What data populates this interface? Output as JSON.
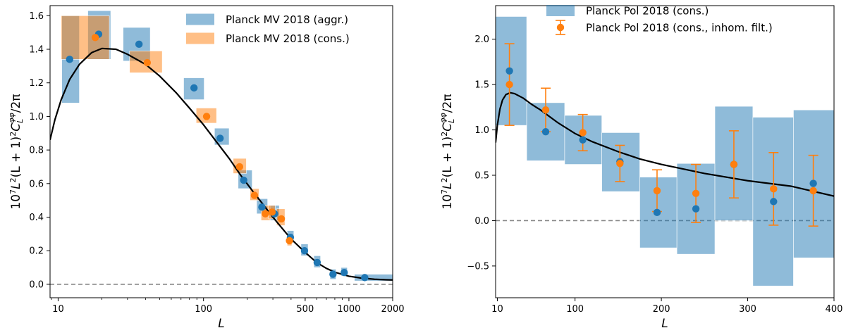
{
  "chart_data": [
    {
      "type": "scatter",
      "xscale": "log",
      "xlabel": "L",
      "ylabel": "10⁷L²(L+1)²C_L^{φφ}/2π",
      "ylabel_parts": {
        "prefix": "10",
        "exp7": "7",
        "L1": "L",
        "exp2a": "2",
        "mid": "(L + 1)",
        "exp2b": "2",
        "C": "C",
        "sub": "L",
        "sup": "φφ",
        "suffix": "/2π"
      },
      "xlim": [
        8.8,
        2000
      ],
      "ylim": [
        -0.08,
        1.66
      ],
      "xticks": [
        {
          "value": 10,
          "label": "10"
        },
        {
          "value": 100,
          "label": "100"
        },
        {
          "value": 500,
          "label": "500"
        },
        {
          "value": 1000,
          "label": "1000"
        },
        {
          "value": 2000,
          "label": "2000"
        }
      ],
      "yticks": [
        {
          "value": 0.0,
          "label": "0.0"
        },
        {
          "value": 0.2,
          "label": "0.2"
        },
        {
          "value": 0.4,
          "label": "0.4"
        },
        {
          "value": 0.6,
          "label": "0.6"
        },
        {
          "value": 0.8,
          "label": "0.8"
        },
        {
          "value": 1.0,
          "label": "1.0"
        },
        {
          "value": 1.2,
          "label": "1.2"
        },
        {
          "value": 1.4,
          "label": "1.4"
        },
        {
          "value": 1.6,
          "label": "1.6"
        }
      ],
      "legend_position": "top-right",
      "series": [
        {
          "name": "Planck MV 2018 (aggr.)",
          "kind": "boxes",
          "color": "#1f77b4",
          "fill_alpha": 0.5,
          "points": [
            {
              "x": 12,
              "y": 1.34,
              "xmin": 10.6,
              "xmax": 14.0,
              "ymin": 1.08,
              "ymax": 1.6
            },
            {
              "x": 19,
              "y": 1.49,
              "xmin": 16.0,
              "xmax": 23.0,
              "ymin": 1.34,
              "ymax": 1.63
            },
            {
              "x": 36,
              "y": 1.43,
              "xmin": 28.0,
              "xmax": 43.0,
              "ymin": 1.33,
              "ymax": 1.53
            },
            {
              "x": 86,
              "y": 1.17,
              "xmin": 73.0,
              "xmax": 101.0,
              "ymin": 1.1,
              "ymax": 1.23
            },
            {
              "x": 130,
              "y": 0.87,
              "xmin": 119.0,
              "xmax": 150.0,
              "ymin": 0.83,
              "ymax": 0.93
            },
            {
              "x": 189,
              "y": 0.62,
              "xmin": 173.0,
              "xmax": 216.0,
              "ymin": 0.57,
              "ymax": 0.68
            },
            {
              "x": 252,
              "y": 0.46,
              "xmin": 232.0,
              "xmax": 276.0,
              "ymin": 0.42,
              "ymax": 0.51
            },
            {
              "x": 308,
              "y": 0.42,
              "xmin": 287.0,
              "xmax": 332.0,
              "ymin": 0.38,
              "ymax": 0.47
            },
            {
              "x": 396,
              "y": 0.28,
              "xmin": 376.0,
              "xmax": 418.0,
              "ymin": 0.25,
              "ymax": 0.32
            },
            {
              "x": 495,
              "y": 0.2,
              "xmin": 468.0,
              "xmax": 524.0,
              "ymin": 0.17,
              "ymax": 0.24
            },
            {
              "x": 605,
              "y": 0.13,
              "xmin": 574.0,
              "xmax": 638.0,
              "ymin": 0.1,
              "ymax": 0.17
            },
            {
              "x": 777,
              "y": 0.06,
              "xmin": 741.0,
              "xmax": 815.0,
              "ymin": 0.03,
              "ymax": 0.09
            },
            {
              "x": 928,
              "y": 0.07,
              "xmin": 883.0,
              "xmax": 975.0,
              "ymin": 0.05,
              "ymax": 0.1
            },
            {
              "x": 1285,
              "y": 0.04,
              "xmin": 1090.0,
              "xmax": 2000.0,
              "ymin": 0.02,
              "ymax": 0.06
            }
          ]
        },
        {
          "name": "Planck MV 2018 (cons.)",
          "kind": "boxes",
          "color": "#ff7f0e",
          "fill_alpha": 0.5,
          "points": [
            {
              "x": 18,
              "y": 1.47,
              "xmin": 10.5,
              "xmax": 22.5,
              "ymin": 1.34,
              "ymax": 1.6
            },
            {
              "x": 41,
              "y": 1.32,
              "xmin": 31.0,
              "xmax": 52.0,
              "ymin": 1.26,
              "ymax": 1.39
            },
            {
              "x": 105,
              "y": 1.0,
              "xmin": 89.0,
              "xmax": 123.0,
              "ymin": 0.96,
              "ymax": 1.05
            },
            {
              "x": 177,
              "y": 0.7,
              "xmin": 160.0,
              "xmax": 197.0,
              "ymin": 0.66,
              "ymax": 0.75
            },
            {
              "x": 224,
              "y": 0.53,
              "xmin": 209.0,
              "xmax": 241.0,
              "ymin": 0.5,
              "ymax": 0.57
            },
            {
              "x": 266,
              "y": 0.42,
              "xmin": 249.0,
              "xmax": 287.0,
              "ymin": 0.38,
              "ymax": 0.47
            },
            {
              "x": 296,
              "y": 0.43,
              "xmin": 280.0,
              "xmax": 311.0,
              "ymin": 0.39,
              "ymax": 0.47
            },
            {
              "x": 343,
              "y": 0.39,
              "xmin": 318.0,
              "xmax": 363.0,
              "ymin": 0.35,
              "ymax": 0.45
            },
            {
              "x": 390,
              "y": 0.26,
              "xmin": 376.0,
              "xmax": 405.0,
              "ymin": 0.23,
              "ymax": 0.29
            }
          ]
        },
        {
          "name": "theory",
          "kind": "line",
          "color": "#000000",
          "x": [
            8.8,
            9.5,
            10.5,
            12,
            14,
            17,
            20,
            25,
            30,
            40,
            50,
            65,
            80,
            100,
            120,
            150,
            180,
            220,
            260,
            300,
            350,
            400,
            500,
            600,
            700,
            800,
            1000,
            1200,
            1500,
            1800,
            2000
          ],
          "y": [
            0.86,
            0.98,
            1.1,
            1.22,
            1.31,
            1.38,
            1.405,
            1.4,
            1.37,
            1.31,
            1.24,
            1.14,
            1.05,
            0.95,
            0.86,
            0.75,
            0.65,
            0.55,
            0.47,
            0.4,
            0.33,
            0.27,
            0.19,
            0.13,
            0.095,
            0.072,
            0.048,
            0.038,
            0.03,
            0.027,
            0.026
          ]
        },
        {
          "name": "zero",
          "kind": "hline",
          "color": "#888888",
          "y": 0.0
        }
      ]
    },
    {
      "type": "scatter",
      "xscale": "linear",
      "xlabel": "L",
      "ylabel": "10⁷L²(L+1)²C_L^{φφ}/2π",
      "ylabel_parts": {
        "prefix": "10",
        "exp7": "7",
        "L1": "L",
        "exp2a": "2",
        "mid": "(L + 1)",
        "exp2b": "2",
        "C": "C",
        "sub": "L",
        "sup": "φφ",
        "suffix": "/2π"
      },
      "xlim": [
        8,
        400
      ],
      "ylim": [
        -0.85,
        2.37
      ],
      "xticks": [
        {
          "value": 10,
          "label": "10"
        },
        {
          "value": 100,
          "label": "100"
        },
        {
          "value": 200,
          "label": "200"
        },
        {
          "value": 300,
          "label": "300"
        },
        {
          "value": 400,
          "label": "400"
        }
      ],
      "yticks": [
        {
          "value": -0.5,
          "label": "−0.5"
        },
        {
          "value": 0.0,
          "label": "0.0"
        },
        {
          "value": 0.5,
          "label": "0.5"
        },
        {
          "value": 1.0,
          "label": "1.0"
        },
        {
          "value": 1.5,
          "label": "1.5"
        },
        {
          "value": 2.0,
          "label": "2.0"
        }
      ],
      "legend_position": "top-center",
      "series": [
        {
          "name": "Planck Pol 2018 (cons.)",
          "kind": "boxes",
          "color": "#1f77b4",
          "fill_alpha": 0.5,
          "points": [
            {
              "x": 24,
              "y": 1.65,
              "xmin": 8,
              "xmax": 44,
              "ymin": 1.05,
              "ymax": 2.25
            },
            {
              "x": 66,
              "y": 0.98,
              "xmin": 44,
              "xmax": 88,
              "ymin": 0.66,
              "ymax": 1.3
            },
            {
              "x": 109,
              "y": 0.89,
              "xmin": 88,
              "xmax": 131,
              "ymin": 0.62,
              "ymax": 1.16
            },
            {
              "x": 152,
              "y": 0.65,
              "xmin": 131,
              "xmax": 175,
              "ymin": 0.32,
              "ymax": 0.97
            },
            {
              "x": 195,
              "y": 0.09,
              "xmin": 175,
              "xmax": 218,
              "ymin": -0.3,
              "ymax": 0.48
            },
            {
              "x": 240,
              "y": 0.13,
              "xmin": 218,
              "xmax": 262,
              "ymin": -0.37,
              "ymax": 0.63
            },
            {
              "x": 284,
              "y": 0.62,
              "xmin": 262,
              "xmax": 306,
              "ymin": 0.0,
              "ymax": 1.26
            },
            {
              "x": 330,
              "y": 0.21,
              "xmin": 306,
              "xmax": 353,
              "ymin": -0.72,
              "ymax": 1.14
            },
            {
              "x": 376,
              "y": 0.41,
              "xmin": 353,
              "xmax": 400,
              "ymin": -0.41,
              "ymax": 1.22
            }
          ]
        },
        {
          "name": "Planck Pol 2018 (cons., inhom. filt.)",
          "kind": "errorbar",
          "color": "#ff7f0e",
          "points": [
            {
              "x": 24,
              "y": 1.5,
              "yerr": 0.45
            },
            {
              "x": 66,
              "y": 1.22,
              "yerr": 0.24
            },
            {
              "x": 109,
              "y": 0.97,
              "yerr": 0.2
            },
            {
              "x": 152,
              "y": 0.63,
              "yerr": 0.2
            },
            {
              "x": 195,
              "y": 0.33,
              "yerr": 0.23
            },
            {
              "x": 240,
              "y": 0.3,
              "yerr": 0.32
            },
            {
              "x": 284,
              "y": 0.62,
              "yerr": 0.37
            },
            {
              "x": 330,
              "y": 0.35,
              "yerr": 0.4
            },
            {
              "x": 376,
              "y": 0.33,
              "yerr": 0.39
            }
          ]
        },
        {
          "name": "theory",
          "kind": "line",
          "color": "#000000",
          "x": [
            8,
            10,
            13,
            16,
            20,
            25,
            30,
            40,
            50,
            60,
            80,
            100,
            120,
            150,
            175,
            200,
            250,
            300,
            350,
            400
          ],
          "y": [
            0.86,
            1.05,
            1.23,
            1.33,
            1.39,
            1.41,
            1.4,
            1.35,
            1.28,
            1.22,
            1.08,
            0.96,
            0.87,
            0.76,
            0.68,
            0.62,
            0.52,
            0.44,
            0.38,
            0.27
          ]
        },
        {
          "name": "zero",
          "kind": "hline",
          "color": "#888888",
          "y": 0.0
        }
      ]
    }
  ]
}
